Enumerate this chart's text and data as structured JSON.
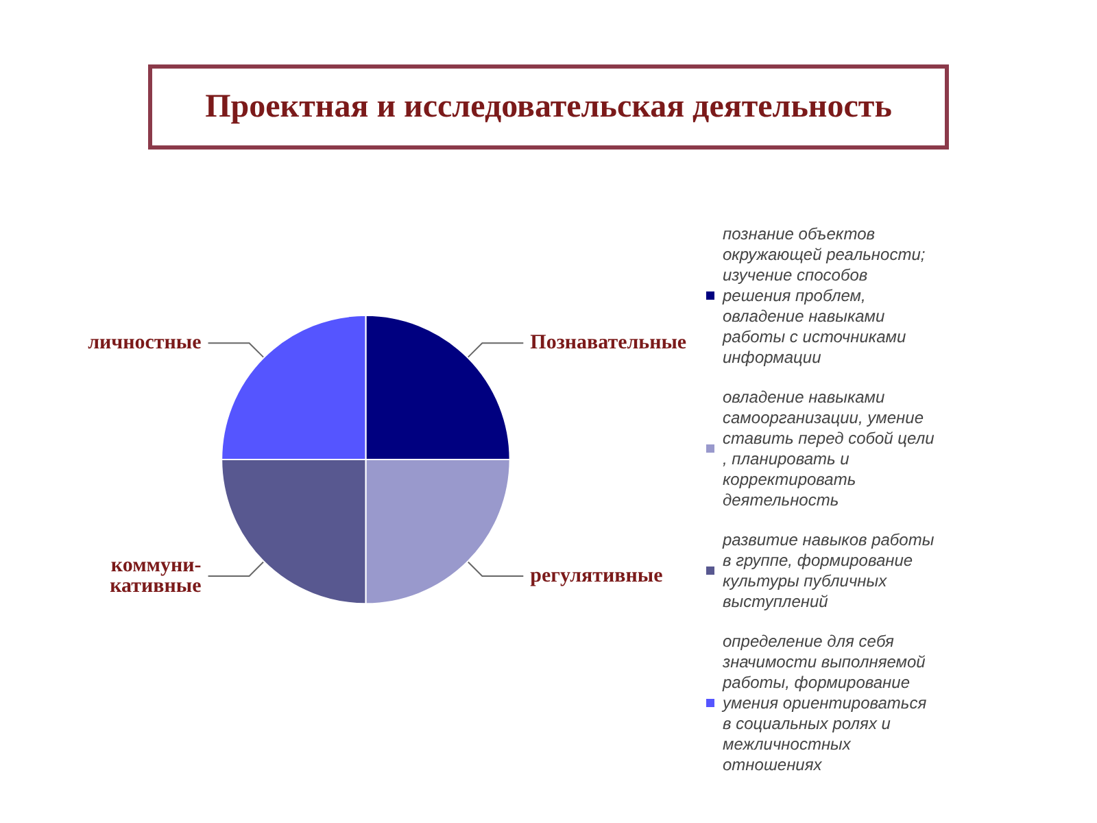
{
  "chart_data": {
    "type": "pie",
    "title": "Проектная и исследовательская деятельность",
    "categories": [
      "познание объектов окружающей реальности; изучение способов решения проблем, овладение навыками работы с источниками информации",
      "овладение навыками самоорганизации, умение ставить перед собой цели, планировать и корректировать деятельность",
      "развитие навыков работы в группе, формирование культуры публичных выступлений",
      "определение для себя значимости выполняемой работы, формирование умения ориентироваться в социальных ролях и межличностных отношениях"
    ],
    "values": [
      25,
      25,
      25,
      25
    ],
    "colors": [
      "#000080",
      "#9999cc",
      "#585890",
      "#5555ff"
    ],
    "value_labels": [
      "Познавательные",
      "регулятивные",
      "коммуни-\nкативные",
      "личностные"
    ],
    "legend": "right"
  }
}
